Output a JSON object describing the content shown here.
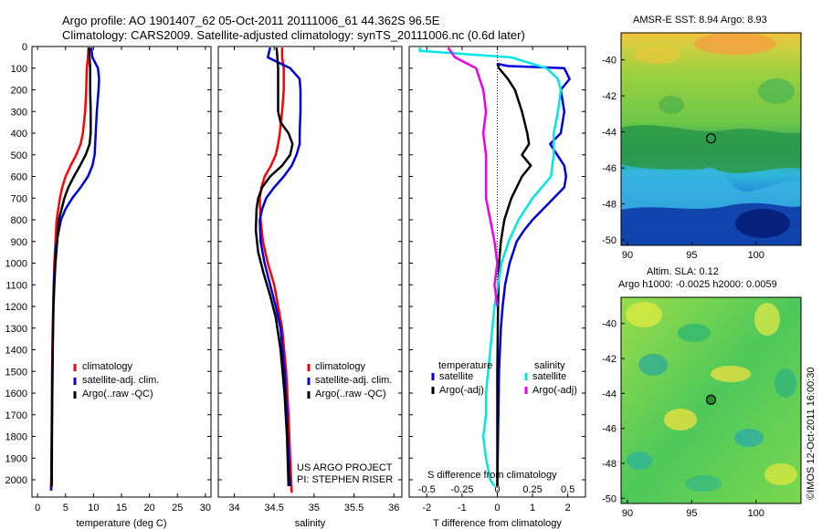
{
  "header": {
    "line1": "Argo profile: AO 1901407_62 05-Oct-2011 20111006_61 44.362S 96.5E",
    "line2": "Climatology: CARS2009. Satellite-adjusted climatology: synTS_20111006.nc (0.6d later)"
  },
  "colors": {
    "red": "#ff0000",
    "blue": "#0000dd",
    "black": "#000000",
    "cyan": "#00e5e5",
    "magenta": "#ee00ee"
  },
  "depth_axis": {
    "ylim": [
      0,
      2080
    ],
    "ticks": [
      0,
      100,
      200,
      300,
      400,
      500,
      600,
      700,
      800,
      900,
      1000,
      1100,
      1200,
      1300,
      1400,
      1500,
      1600,
      1700,
      1800,
      1900,
      2000
    ]
  },
  "chart_data": [
    {
      "type": "line",
      "id": "temperature",
      "xlabel": "temperature (deg C)",
      "xlim": [
        -1,
        31
      ],
      "xticks": [
        0,
        5,
        10,
        15,
        20,
        25,
        30
      ],
      "legend": [
        "climatology",
        "satellite-adj. clim.",
        "Argo(..raw -QC)"
      ],
      "series": [
        {
          "name": "climatology",
          "color": "red",
          "x": [
            9.1,
            9.0,
            8.8,
            8.7,
            8.5,
            8.1,
            7.7,
            6.9,
            5.9,
            5.0,
            4.4,
            4.0,
            3.7,
            3.4,
            3.2,
            3.0,
            2.9,
            2.8,
            2.7,
            2.6,
            2.55,
            2.5,
            2.45,
            2.4
          ],
          "y": [
            5,
            50,
            100,
            200,
            300,
            400,
            450,
            500,
            550,
            600,
            650,
            700,
            750,
            800,
            900,
            1000,
            1100,
            1200,
            1300,
            1500,
            1700,
            1900,
            2000,
            2050
          ]
        },
        {
          "name": "satellite-adj. clim.",
          "color": "blue",
          "x": [
            9.6,
            9.8,
            10.8,
            11.0,
            10.9,
            10.6,
            10.4,
            10.3,
            10.2,
            9.8,
            9.0,
            7.7,
            6.2,
            5.0,
            4.2,
            3.8,
            3.4,
            3.1,
            2.9,
            2.8,
            2.7,
            2.6,
            2.5,
            2.45
          ],
          "y": [
            5,
            50,
            100,
            150,
            200,
            300,
            400,
            450,
            500,
            550,
            600,
            650,
            700,
            750,
            800,
            850,
            900,
            1000,
            1100,
            1200,
            1400,
            1700,
            1900,
            2050
          ]
        },
        {
          "name": "Argo(..raw -QC)",
          "color": "black",
          "x": [
            9.2,
            9.3,
            9.4,
            9.4,
            9.5,
            9.5,
            9.3,
            8.6,
            7.6,
            6.5,
            5.5,
            4.8,
            4.3,
            3.8,
            3.5,
            3.2,
            3.0,
            2.85,
            2.7,
            2.6,
            2.55
          ],
          "y": [
            5,
            50,
            100,
            200,
            300,
            400,
            450,
            500,
            550,
            600,
            650,
            700,
            750,
            800,
            900,
            1000,
            1100,
            1200,
            1400,
            1700,
            2030
          ]
        }
      ]
    },
    {
      "type": "line",
      "id": "salinity",
      "xlabel": "salinity",
      "xlim": [
        33.8,
        36.1
      ],
      "xticks": [
        34,
        34.5,
        35,
        35.5,
        36
      ],
      "xtick_labels": [
        "34",
        "34.5",
        "35",
        "35.5",
        "36"
      ],
      "legend": [
        "climatology",
        "satellite-adj. clim.",
        "Argo(..raw -QC)"
      ],
      "series": [
        {
          "name": "climatology",
          "color": "red",
          "x": [
            34.6,
            34.6,
            34.62,
            34.62,
            34.6,
            34.57,
            34.55,
            34.52,
            34.46,
            34.38,
            34.34,
            34.32,
            34.33,
            34.36,
            34.42,
            34.5,
            34.55,
            34.6,
            34.65,
            34.68,
            34.7,
            34.72
          ],
          "y": [
            5,
            50,
            100,
            200,
            300,
            400,
            450,
            500,
            550,
            600,
            650,
            700,
            800,
            900,
            1000,
            1100,
            1200,
            1300,
            1500,
            1700,
            1900,
            2060
          ]
        },
        {
          "name": "satellite-adj. clim.",
          "color": "blue",
          "x": [
            34.45,
            34.42,
            34.7,
            34.82,
            34.83,
            34.83,
            34.82,
            34.82,
            34.78,
            34.72,
            34.62,
            34.5,
            34.4,
            34.35,
            34.32,
            34.33,
            34.38,
            34.45,
            34.52,
            34.58,
            34.63,
            34.66,
            34.68,
            34.7
          ],
          "y": [
            5,
            50,
            100,
            150,
            200,
            300,
            400,
            450,
            500,
            550,
            600,
            650,
            700,
            750,
            800,
            900,
            1000,
            1100,
            1200,
            1300,
            1500,
            1700,
            1900,
            2030
          ]
        },
        {
          "name": "Argo(..raw -QC)",
          "color": "black",
          "x": [
            34.53,
            34.54,
            34.55,
            34.55,
            34.55,
            34.58,
            34.68,
            34.73,
            34.7,
            34.6,
            34.45,
            34.35,
            34.3,
            34.28,
            34.27,
            34.3,
            34.37,
            34.45,
            34.52,
            34.58,
            34.63,
            34.66,
            34.68
          ],
          "y": [
            5,
            50,
            100,
            200,
            300,
            350,
            400,
            450,
            500,
            550,
            600,
            650,
            700,
            750,
            850,
            950,
            1050,
            1150,
            1250,
            1400,
            1600,
            1800,
            2030
          ]
        }
      ]
    },
    {
      "type": "line",
      "id": "difference",
      "xlabel": "T difference from climatology",
      "xlim": [
        -2.5,
        2.5
      ],
      "xticks": [
        -2,
        -1,
        0,
        1,
        2
      ],
      "top_label": "S difference from climatology",
      "top_ticks": [
        -0.5,
        -0.25,
        0,
        0.25,
        0.5
      ],
      "top_tick_labels": [
        "-0.5",
        "-0.25",
        "0",
        "0.25",
        "0.5"
      ],
      "legend_headers": [
        "temperature",
        "salinity"
      ],
      "legend": [
        "satellite",
        "Argo(-adj)",
        "satellite",
        "Argo(-adj)"
      ],
      "series": [
        {
          "name": "satellite",
          "color": "blue",
          "x": [
            0,
            0.3,
            1.9,
            2.05,
            1.8,
            1.9,
            1.8,
            1.5,
            1.7,
            1.9,
            1.95,
            1.9,
            1.6,
            1.3,
            1.0,
            0.75,
            0.55,
            0.35,
            0.22,
            0.15,
            0.1,
            0.05,
            0.02,
            0
          ],
          "y": [
            80,
            90,
            100,
            150,
            200,
            300,
            400,
            450,
            500,
            550,
            600,
            650,
            700,
            750,
            800,
            850,
            900,
            1000,
            1100,
            1200,
            1300,
            1500,
            1800,
            2030
          ]
        },
        {
          "name": "Argo(-adj)",
          "color": "black",
          "x": [
            0,
            0.05,
            0.3,
            0.5,
            0.7,
            0.85,
            0.9,
            0.7,
            0.95,
            0.7,
            0.4,
            0.2,
            0.1,
            0.05,
            0.02,
            0,
            0
          ],
          "y": [
            80,
            100,
            150,
            200,
            300,
            400,
            450,
            500,
            550,
            600,
            700,
            800,
            900,
            1000,
            1200,
            1500,
            2030
          ]
        },
        {
          "name": "satellite",
          "color": "cyan",
          "x": [
            -0.55,
            -0.55,
            0.1,
            0.35,
            0.43,
            0.45,
            0.43,
            0.4,
            0.4,
            0.38,
            0.25,
            0.15,
            0.08,
            0.03,
            -0.02,
            -0.05,
            -0.08,
            -0.08,
            -0.1,
            -0.08,
            -0.05,
            -0.02
          ],
          "y": [
            5,
            20,
            50,
            100,
            150,
            200,
            300,
            400,
            500,
            600,
            700,
            800,
            900,
            1000,
            1200,
            1400,
            1600,
            1700,
            1800,
            1900,
            2000,
            2030
          ]
        },
        {
          "name": "Argo(-adj)",
          "color": "magenta",
          "x": [
            -0.35,
            -0.3,
            -0.15,
            -0.1,
            -0.08,
            -0.1,
            -0.08,
            -0.08,
            -0.08,
            -0.05,
            -0.02,
            0,
            -0.02,
            0
          ],
          "y": [
            5,
            50,
            100,
            200,
            300,
            400,
            500,
            600,
            700,
            800,
            900,
            1000,
            1100,
            1200
          ]
        }
      ]
    },
    {
      "type": "heatmap",
      "id": "sst_map",
      "title": "AMSR-E SST: 8.94 Argo: 8.93",
      "xlim": [
        89.5,
        103.5
      ],
      "ylim": [
        -50.3,
        -38.5
      ],
      "xticks": [
        90,
        95,
        100
      ],
      "yticks": [
        -40,
        -42,
        -44,
        -46,
        -48,
        -50
      ],
      "marker": {
        "lon": 96.5,
        "lat": -44.36
      }
    },
    {
      "type": "heatmap",
      "id": "sla_map",
      "title_line1": "Altim. SLA: 0.12",
      "title_line2": "Argo h1000: -0.0025 h2000: 0.0059",
      "xlim": [
        89.5,
        103.5
      ],
      "ylim": [
        -50.3,
        -38.5
      ],
      "xticks": [
        90,
        95,
        100
      ],
      "yticks": [
        -40,
        -42,
        -44,
        -46,
        -48,
        -50
      ],
      "marker": {
        "lon": 96.5,
        "lat": -44.36
      }
    }
  ],
  "credits": {
    "project": "US ARGO PROJECT",
    "pi": "PI: STEPHEN RISER",
    "stamp": "©IMOS 12-Oct-2011 16:00:30"
  }
}
